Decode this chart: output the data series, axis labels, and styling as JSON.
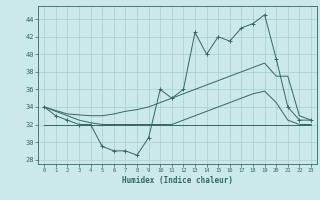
{
  "x": [
    0,
    1,
    2,
    3,
    4,
    5,
    6,
    7,
    8,
    9,
    10,
    11,
    12,
    13,
    14,
    15,
    16,
    17,
    18,
    19,
    20,
    21,
    22,
    23
  ],
  "y_main": [
    34,
    33,
    32.5,
    32,
    32,
    29.5,
    29,
    29,
    28.5,
    30.5,
    36,
    35,
    36,
    42.5,
    40,
    42,
    41.5,
    43,
    43.5,
    44.5,
    39.5,
    34,
    32.5,
    32.5
  ],
  "y_upper": [
    34,
    33.6,
    33.2,
    33.1,
    33.0,
    33.0,
    33.2,
    33.5,
    33.7,
    34.0,
    34.5,
    35.0,
    35.5,
    36.0,
    36.5,
    37.0,
    37.5,
    38.0,
    38.5,
    39.0,
    37.5,
    37.5,
    33.0,
    32.5
  ],
  "y_lower": [
    34,
    33.5,
    33.0,
    32.5,
    32.2,
    32.0,
    32.0,
    32.0,
    32.0,
    32.0,
    32.0,
    32.0,
    32.5,
    33.0,
    33.5,
    34.0,
    34.5,
    35.0,
    35.5,
    35.8,
    34.5,
    32.5,
    32.0,
    32.0
  ],
  "y_flat": [
    32,
    32,
    32,
    32,
    32,
    32,
    32,
    32,
    32,
    32,
    32,
    32,
    32,
    32,
    32,
    32,
    32,
    32,
    32,
    32,
    32,
    32,
    32,
    32
  ],
  "line_color": "#2E6B5E",
  "bg_color": "#CBE9E6",
  "grid_color": "#AACFCC",
  "xlabel": "Humidex (Indice chaleur)",
  "xlim": [
    -0.5,
    23.5
  ],
  "ylim": [
    27.5,
    45.5
  ],
  "yticks": [
    28,
    30,
    32,
    34,
    36,
    38,
    40,
    42,
    44
  ],
  "xticks": [
    0,
    1,
    2,
    3,
    4,
    5,
    6,
    7,
    8,
    9,
    10,
    11,
    12,
    13,
    14,
    15,
    16,
    17,
    18,
    19,
    20,
    21,
    22,
    23
  ]
}
